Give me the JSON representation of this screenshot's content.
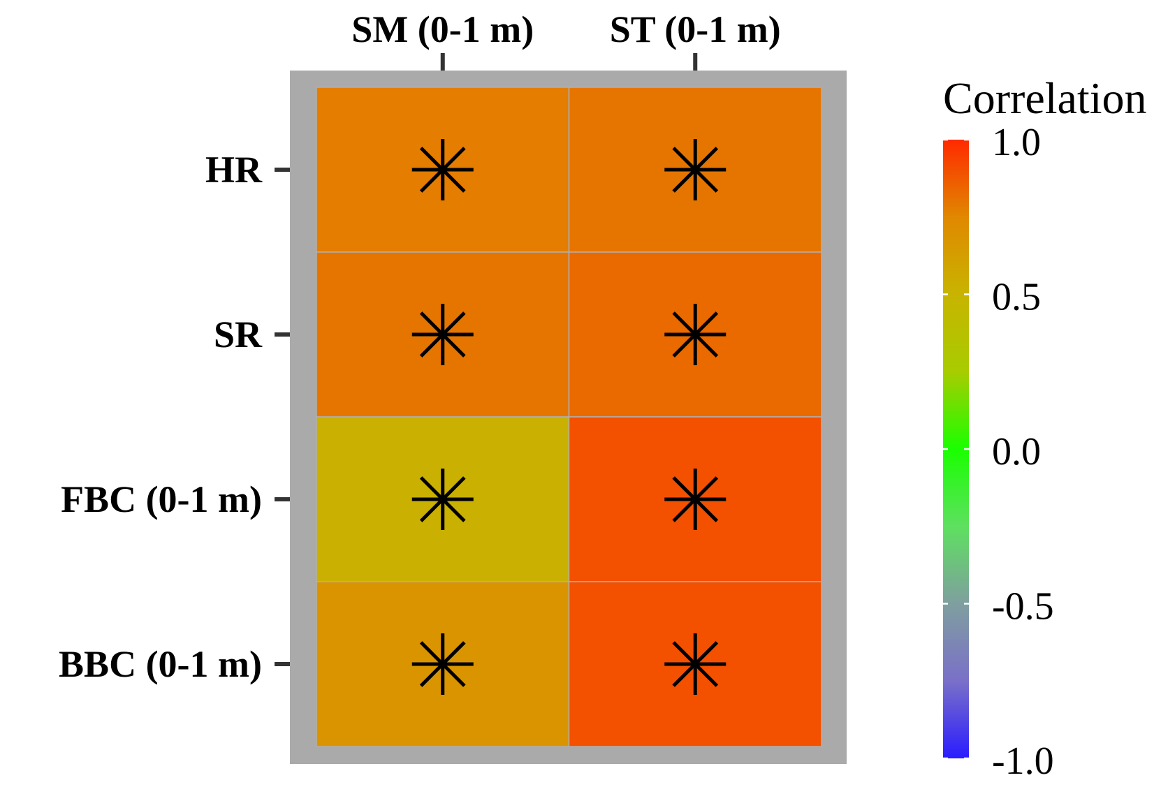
{
  "chart_data": {
    "type": "heatmap",
    "title": "",
    "x_categories": [
      "SM (0-1 m)",
      "ST (0-1 m)"
    ],
    "y_categories": [
      "HR",
      "SR",
      "FBC (0-1 m)",
      "BBC (0-1 m)"
    ],
    "values": [
      [
        0.78,
        0.8
      ],
      [
        0.8,
        0.83
      ],
      [
        0.52,
        0.9
      ],
      [
        0.68,
        0.9
      ]
    ],
    "significance_marker": "✳",
    "significant": [
      [
        true,
        true
      ],
      [
        true,
        true
      ],
      [
        true,
        true
      ],
      [
        true,
        true
      ]
    ],
    "colorbar": {
      "title": "Correlation",
      "range": [
        -1.0,
        1.0
      ],
      "ticks": [
        1.0,
        0.5,
        0.0,
        -0.5,
        -1.0
      ],
      "tick_labels": [
        "1.0",
        "0.5",
        "0.0",
        "-0.5",
        "-1.0"
      ],
      "colors": [
        "#2a1cff",
        "#7a70c8",
        "#7f9f9f",
        "#5ee060",
        "#1aff00",
        "#a8cc00",
        "#c8b400",
        "#e08800",
        "#ff2a00"
      ]
    },
    "panel_background": "#aaaaaa",
    "legend_position": "right"
  }
}
